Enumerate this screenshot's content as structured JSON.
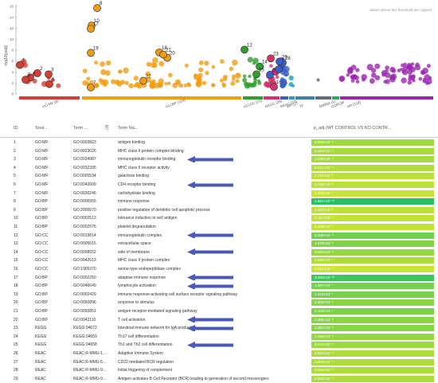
{
  "plot": {
    "cap_note": "values above this threshold are capped",
    "y_axis_label": "-log10(padj)",
    "y_ticks": [
      "0",
      "2",
      "4",
      "6",
      "8",
      "10",
      "12",
      "14",
      "16"
    ],
    "sources": [
      {
        "label": "GO:MF (9)",
        "color": "#d43f34"
      },
      {
        "label": "GO:BP (124)",
        "color": "#f39c12"
      },
      {
        "label": "GO:CC (21)",
        "color": "#2ea02c"
      },
      {
        "label": "KEGG (26)",
        "color": "#d6336c"
      },
      {
        "label": "REAC (22)",
        "color": "#3a5fcd"
      },
      {
        "label": "WP (2)",
        "color": "#17a2b8"
      },
      {
        "label": "TF",
        "color": "#3d7fb5"
      },
      {
        "label": "MIRNA (1)",
        "color": "#5d6d7e"
      },
      {
        "label": "CORUM",
        "color": "#27ae60"
      },
      {
        "label": "HP (118)",
        "color": "#9b27b0"
      }
    ],
    "point_labels": [
      "1",
      "2",
      "3",
      "4",
      "5",
      "6",
      "7",
      "8",
      "10",
      "12",
      "14",
      "15",
      "16",
      "17",
      "18",
      "19",
      "20",
      "21",
      "22",
      "23",
      "25",
      "26",
      "27",
      "28",
      "29"
    ]
  },
  "table": {
    "headers": {
      "id": "ID",
      "source": "Sour...",
      "term_id": "Term ...",
      "term_name": "Term Na...",
      "padj": "p_adj (WT CONTROL VS KO CONTR..."
    },
    "rows": [
      {
        "id": "1",
        "source": "GO:MF",
        "term_id": "GO:0003823",
        "term_name": "antigen binding",
        "padj": "6.605×10⁻⁵",
        "level": 0.3,
        "arrow": false
      },
      {
        "id": "2",
        "source": "GO:MF",
        "term_id": "GO:0023026",
        "term_name": "MHC class II protein complex binding",
        "padj": "2.424×10⁻⁴",
        "level": 0.25,
        "arrow": false
      },
      {
        "id": "3",
        "source": "GO:MF",
        "term_id": "GO:0034987",
        "term_name": "immunoglobulin receptor binding",
        "padj": "2.546×10⁻⁴",
        "level": 0.25,
        "arrow": true
      },
      {
        "id": "4",
        "source": "GO:MF",
        "term_id": "GO:0032395",
        "term_name": "MHC class II receptor activity",
        "padj": "5.021×10⁻⁴",
        "level": 0.2,
        "arrow": false
      },
      {
        "id": "5",
        "source": "GO:MF",
        "term_id": "GO:0005534",
        "term_name": "galactose binding",
        "padj": "1.724×10⁻³",
        "level": 0.15,
        "arrow": false
      },
      {
        "id": "6",
        "source": "GO:MF",
        "term_id": "GO:0042609",
        "term_name": "CD4 receptor binding",
        "padj": "1.724×10⁻³",
        "level": 0.15,
        "arrow": true
      },
      {
        "id": "7",
        "source": "GO:MF",
        "term_id": "GO:0030246",
        "term_name": "carbohydrate binding",
        "padj": "4.463×10⁻³",
        "level": 0.1,
        "arrow": false
      },
      {
        "id": "8",
        "source": "GO:BP",
        "term_id": "GO:0006955",
        "term_name": "immune response",
        "padj": "1.651×10⁻¹⁵",
        "level": 1.0,
        "arrow": false
      },
      {
        "id": "9",
        "source": "GO:BP",
        "term_id": "GO:2000670",
        "term_name": "positive regulation of dendritic cell apoptotic process",
        "padj": "1.228×10⁻³",
        "level": 0.15,
        "arrow": false
      },
      {
        "id": "10",
        "source": "GO:BP",
        "term_id": "GO:0002513",
        "term_name": "tolerance induction to self antigen",
        "padj": "2.137×10⁻³",
        "level": 0.12,
        "arrow": false
      },
      {
        "id": "11",
        "source": "GO:BP",
        "term_id": "GO:0002576",
        "term_name": "platelet degranulation",
        "padj": "2.228×10⁻³",
        "level": 0.12,
        "arrow": false
      },
      {
        "id": "12",
        "source": "GO:CC",
        "term_id": "GO:0019814",
        "term_name": "immunoglobulin complex",
        "padj": "5.206×10⁻⁸",
        "level": 0.55,
        "arrow": true
      },
      {
        "id": "13",
        "source": "GO:CC",
        "term_id": "GO:0005615",
        "term_name": "extracellular space",
        "padj": "1.076×10⁻⁶",
        "level": 0.45,
        "arrow": false
      },
      {
        "id": "14",
        "source": "GO:CC",
        "term_id": "GO:0098552",
        "term_name": "side of membrane",
        "padj": "2.060×10⁻⁵",
        "level": 0.35,
        "arrow": true
      },
      {
        "id": "15",
        "source": "GO:CC",
        "term_id": "GO:0042613",
        "term_name": "MHC class II protein complex",
        "padj": "3.066×10⁻⁴",
        "level": 0.22,
        "arrow": false
      },
      {
        "id": "16",
        "source": "GO:CC",
        "term_id": "GO:1905370",
        "term_name": "serine-type endopeptidase complex",
        "padj": "8.521×10⁻³",
        "level": 0.08,
        "arrow": false
      },
      {
        "id": "17",
        "source": "GO:BP",
        "term_id": "GO:0002250",
        "term_name": "adaptive immune response",
        "padj": "3.053×10⁻¹²",
        "level": 0.85,
        "arrow": true
      },
      {
        "id": "18",
        "source": "GO:BP",
        "term_id": "GO:0046649",
        "term_name": "lymphocyte activation",
        "padj": "1.097×10⁻⁷",
        "level": 0.52,
        "arrow": true
      },
      {
        "id": "19",
        "source": "GO:BP",
        "term_id": "GO:0002429",
        "term_name": "immune response-activating cell surface receptor signaling pathway",
        "padj": "1.313×10⁻⁷",
        "level": 0.52,
        "arrow": false
      },
      {
        "id": "20",
        "source": "GO:BP",
        "term_id": "GO:0050896",
        "term_name": "response to stimulus",
        "padj": "2.300×10⁻⁶",
        "level": 0.42,
        "arrow": false
      },
      {
        "id": "21",
        "source": "GO:BP",
        "term_id": "GO:0050851",
        "term_name": "antigen receptor-mediated signaling pathway",
        "padj": "4.153×10⁻⁷",
        "level": 0.48,
        "arrow": false
      },
      {
        "id": "22",
        "source": "GO:BP",
        "term_id": "GO:0042110",
        "term_name": "T cell activation",
        "padj": "2.395×10⁻⁶",
        "level": 0.42,
        "arrow": true
      },
      {
        "id": "23",
        "source": "KEGG",
        "term_id": "KEGG:04672",
        "term_name": "Intestinal immune network for IgA production",
        "padj": "2.392×10⁻⁶",
        "level": 0.42,
        "arrow": true
      },
      {
        "id": "24",
        "source": "KEGG",
        "term_id": "KEGG:04659",
        "term_name": "Th17 cell differentiation",
        "padj": "1.256×10⁻⁵",
        "level": 0.35,
        "arrow": false
      },
      {
        "id": "25",
        "source": "KEGG",
        "term_id": "KEGG:04658",
        "term_name": "Th1 and Th2 cell differentiation",
        "padj": "6.013×10⁻⁵",
        "level": 0.32,
        "arrow": true
      },
      {
        "id": "26",
        "source": "REAC",
        "term_id": "REAC:R-MMU-1...",
        "term_name": "Adaptive Immune System",
        "padj": "2.563×10⁻⁴",
        "level": 0.22,
        "arrow": false
      },
      {
        "id": "27",
        "source": "REAC",
        "term_id": "REAC:R-MMU-5...",
        "term_name": "CD22 mediated BCR regulation",
        "padj": "2.826×10⁻⁴",
        "level": 0.22,
        "arrow": false
      },
      {
        "id": "28",
        "source": "REAC",
        "term_id": "REAC:R-MMU-9...",
        "term_name": "Initial triggering of complement",
        "padj": "2.826×10⁻⁴",
        "level": 0.22,
        "arrow": false
      },
      {
        "id": "29",
        "source": "REAC",
        "term_id": "REAC:R-MMU-9...",
        "term_name": "Antigen activates B Cell Receptor (BCR) leading to generation of second messengers",
        "padj": "2.826×10⁻⁴",
        "level": 0.22,
        "arrow": false
      }
    ]
  },
  "colors": {
    "arrow": "#4a5bb5",
    "padj_low": "#e4ea2a",
    "padj_high": "#2bbf63"
  }
}
